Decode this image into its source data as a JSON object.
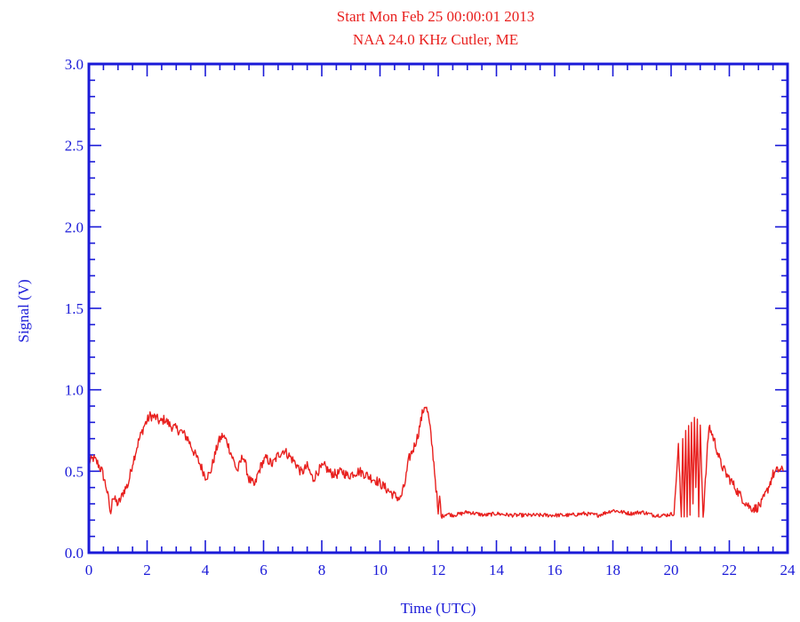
{
  "chart_data": {
    "type": "line",
    "title": "Start Mon Feb 25 00:00:01 2013",
    "subtitle": "NAA 24.0  KHz  Cutler, ME",
    "xlabel": "Time (UTC)",
    "ylabel": "Signal (V)",
    "xlim": [
      0,
      24
    ],
    "ylim": [
      0,
      3.0
    ],
    "xticks": [
      0,
      2,
      4,
      6,
      8,
      10,
      12,
      14,
      16,
      18,
      20,
      22,
      24
    ],
    "yticks": [
      "0.0",
      "0.5",
      "1.0",
      "1.5",
      "2.0",
      "2.5",
      "3.0"
    ],
    "grid": false,
    "colors": {
      "series": "#e8201e",
      "axes": "#1a1ad8",
      "title": "#e8201e"
    },
    "series": [
      {
        "x": [
          0.0,
          0.15,
          0.3,
          0.45,
          0.6,
          0.7,
          0.75,
          0.8,
          0.9,
          1.0,
          1.1,
          1.2,
          1.35,
          1.5,
          1.7,
          1.9,
          2.1,
          2.3,
          2.45,
          2.6,
          2.8,
          3.0,
          3.2,
          3.4,
          3.6,
          3.8,
          4.0,
          4.15,
          4.3,
          4.45,
          4.6,
          4.75,
          4.9,
          5.1,
          5.3,
          5.5,
          5.7,
          5.8,
          5.95,
          6.1,
          6.3,
          6.5,
          6.7,
          6.9,
          7.1,
          7.3,
          7.5,
          7.7,
          7.9,
          8.1,
          8.3,
          8.5,
          8.7,
          8.9,
          9.1,
          9.3,
          9.5,
          9.7,
          9.9,
          10.1,
          10.3,
          10.5,
          10.7,
          10.85,
          11.0,
          11.15,
          11.3,
          11.45,
          11.55,
          11.65,
          11.75,
          11.85,
          11.95,
          12.0,
          12.05,
          12.1,
          12.3,
          12.5,
          12.8,
          13.0,
          13.3,
          13.6,
          14.0,
          14.5,
          15.0,
          15.5,
          16.0,
          16.5,
          17.0,
          17.5,
          18.0,
          18.3,
          18.6,
          19.0,
          19.4,
          19.8,
          20.1,
          20.25,
          20.35,
          20.4,
          20.45,
          20.5,
          20.55,
          20.6,
          20.65,
          20.7,
          20.75,
          20.8,
          20.85,
          20.9,
          20.95,
          21.0,
          21.1,
          21.3,
          21.5,
          21.7,
          21.9,
          22.1,
          22.3,
          22.5,
          22.7,
          22.9,
          23.1,
          23.3,
          23.5,
          23.7,
          23.85
        ],
        "y": [
          0.55,
          0.58,
          0.55,
          0.5,
          0.4,
          0.3,
          0.22,
          0.35,
          0.32,
          0.3,
          0.33,
          0.38,
          0.42,
          0.55,
          0.68,
          0.78,
          0.84,
          0.83,
          0.8,
          0.82,
          0.78,
          0.76,
          0.74,
          0.7,
          0.62,
          0.55,
          0.47,
          0.48,
          0.58,
          0.68,
          0.72,
          0.68,
          0.6,
          0.5,
          0.6,
          0.45,
          0.41,
          0.48,
          0.55,
          0.58,
          0.54,
          0.6,
          0.63,
          0.59,
          0.55,
          0.49,
          0.53,
          0.45,
          0.51,
          0.53,
          0.49,
          0.48,
          0.5,
          0.47,
          0.49,
          0.5,
          0.48,
          0.46,
          0.44,
          0.41,
          0.38,
          0.35,
          0.33,
          0.42,
          0.58,
          0.64,
          0.72,
          0.85,
          0.91,
          0.85,
          0.72,
          0.55,
          0.35,
          0.22,
          0.35,
          0.22,
          0.24,
          0.23,
          0.24,
          0.25,
          0.24,
          0.23,
          0.24,
          0.23,
          0.23,
          0.23,
          0.23,
          0.23,
          0.24,
          0.23,
          0.26,
          0.25,
          0.24,
          0.25,
          0.23,
          0.23,
          0.24,
          0.65,
          0.22,
          0.7,
          0.22,
          0.75,
          0.22,
          0.78,
          0.23,
          0.8,
          0.3,
          0.83,
          0.4,
          0.82,
          0.22,
          0.78,
          0.22,
          0.78,
          0.68,
          0.55,
          0.48,
          0.43,
          0.37,
          0.32,
          0.28,
          0.27,
          0.3,
          0.38,
          0.48,
          0.51,
          0.5
        ]
      }
    ]
  }
}
